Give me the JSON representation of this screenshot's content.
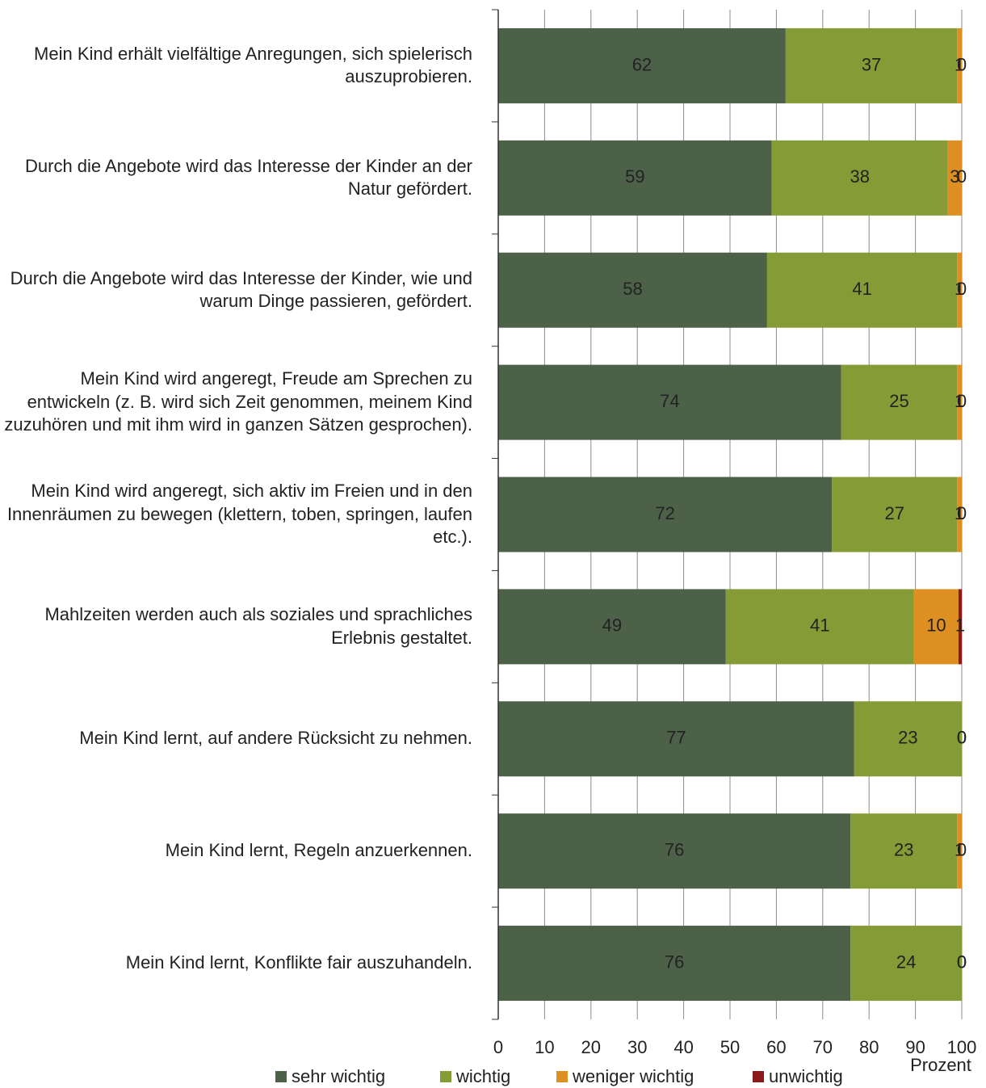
{
  "chart_data": {
    "type": "stacked-bar-horizontal",
    "categories": [
      "Mein Kind erhält vielfältige Anregungen, sich spielerisch auszuprobieren.",
      "Durch die Angebote wird das Interesse der Kinder an der Natur gefördert.",
      "Durch die Angebote wird das Interesse der Kinder, wie und warum Dinge passieren, gefördert.",
      "Mein Kind wird angeregt, Freude am Sprechen zu entwickeln (z. B. wird sich Zeit genommen, meinem Kind zuzuhören und mit ihm wird in ganzen Sätzen gesprochen).",
      "Mein Kind wird angeregt, sich aktiv im Freien und in den Innenräumen zu bewegen (klettern, toben, springen, laufen etc.).",
      "Mahlzeiten werden auch als soziales und sprachliches Erlebnis gestaltet.",
      "Mein Kind lernt, auf andere Rücksicht zu nehmen.",
      "Mein Kind lernt, Regeln anzuerkennen.",
      "Mein Kind lernt, Konflikte fair auszuhandeln."
    ],
    "series": [
      {
        "name": "sehr wichtig",
        "color": "#4d6148",
        "values": [
          62,
          59,
          58,
          74,
          72,
          49.1,
          76.8,
          76,
          76
        ],
        "value_labels": [
          "62",
          "59",
          "58",
          "74",
          "72",
          "49",
          "77",
          "76",
          "76"
        ]
      },
      {
        "name": "wichtig",
        "color": "#859b35",
        "values": [
          37,
          38,
          41,
          25,
          27,
          40.6,
          23.2,
          23,
          24
        ],
        "value_labels": [
          "37",
          "38",
          "41",
          "25",
          "27",
          "41",
          "23",
          "23",
          "24"
        ]
      },
      {
        "name": "weniger wichtig",
        "color": "#dd8f22",
        "values": [
          1,
          3,
          1,
          1,
          1,
          9.6,
          0,
          1,
          0
        ],
        "value_labels": [
          "1",
          "3",
          "1",
          "1",
          "1",
          "10",
          "0",
          "1",
          "0"
        ]
      },
      {
        "name": "unwichtig",
        "color": "#8b1a1a",
        "values": [
          0,
          0,
          0,
          0,
          0,
          0.7,
          0,
          0,
          0
        ],
        "value_labels": [
          "0",
          "0",
          "0",
          "0",
          "0",
          "1",
          "0",
          "0",
          "0"
        ]
      }
    ],
    "xlabel": "Prozent",
    "xlim": [
      0,
      100
    ],
    "xticks": [
      0,
      10,
      20,
      30,
      40,
      50,
      60,
      70,
      80,
      90,
      100
    ],
    "grid": true,
    "legend": "bottom"
  }
}
